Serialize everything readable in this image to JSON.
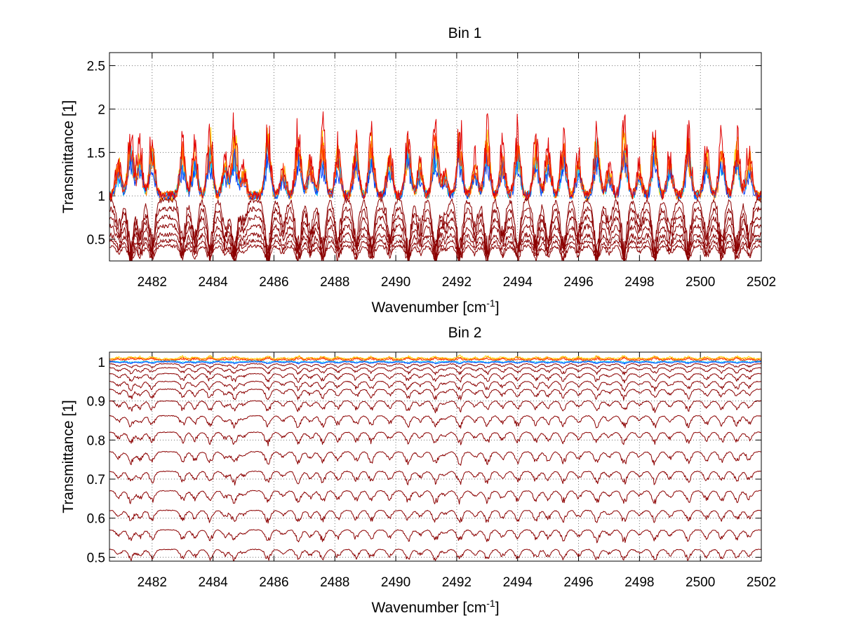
{
  "chart_data": [
    {
      "type": "line",
      "title": "Bin 1",
      "xlabel": "Wavenumber [cm",
      "xlabel_sup": "-1",
      "xlabel_suffix": "]",
      "ylabel": "Transmittance [1]",
      "xlim": [
        2480.6,
        2502
      ],
      "ylim": [
        0.25,
        2.65
      ],
      "xticks": [
        2482,
        2484,
        2486,
        2488,
        2490,
        2492,
        2494,
        2496,
        2498,
        2500,
        2502
      ],
      "yticks": [
        0.5,
        1,
        1.5,
        2,
        2.5
      ],
      "ytick_labels": [
        "0.5",
        "1",
        "1.5",
        "2",
        "2.5"
      ],
      "grid": true,
      "line_strength_centers": [
        2480.9,
        2481.3,
        2481.6,
        2482.0,
        2483.0,
        2483.4,
        2483.9,
        2484.4,
        2484.7,
        2485.0,
        2485.8,
        2486.3,
        2486.8,
        2487.2,
        2487.6,
        2488.1,
        2488.7,
        2489.2,
        2489.8,
        2490.4,
        2490.8,
        2491.3,
        2491.6,
        2492.1,
        2492.6,
        2493.0,
        2493.5,
        2494.0,
        2494.6,
        2495.0,
        2495.5,
        2496.0,
        2496.6,
        2497.0,
        2497.5,
        2498.0,
        2498.5,
        2499.0,
        2499.6,
        2500.2,
        2500.7,
        2501.2,
        2501.6
      ],
      "series": [
        {
          "baseline": 1.0,
          "peak": 0.6,
          "noise": 0.06,
          "color": "#ffd400"
        },
        {
          "baseline": 1.0,
          "peak": 0.55,
          "noise": 0.06,
          "color": "#ffa500"
        },
        {
          "baseline": 1.0,
          "peak": 0.5,
          "noise": 0.06,
          "color": "#ff7f00"
        },
        {
          "baseline": 1.0,
          "peak": 0.45,
          "noise": 0.05,
          "color": "#00c8ff"
        },
        {
          "baseline": 1.0,
          "peak": 0.4,
          "noise": 0.05,
          "color": "#0040ff"
        },
        {
          "baseline": 1.0,
          "peak": 0.55,
          "noise": 0.05,
          "color": "#ff3000"
        },
        {
          "baseline": 1.0,
          "peak": 0.75,
          "noise": 0.06,
          "color": "#e00000"
        },
        {
          "baseline": 0.95,
          "dip": 0.6,
          "noise": 0.03,
          "color": "#8b0000"
        },
        {
          "baseline": 0.85,
          "dip": 0.5,
          "noise": 0.03,
          "color": "#8b0000"
        },
        {
          "baseline": 0.75,
          "dip": 0.4,
          "noise": 0.03,
          "color": "#8b0000"
        },
        {
          "baseline": 0.65,
          "dip": 0.32,
          "noise": 0.03,
          "color": "#8b0000"
        },
        {
          "baseline": 0.55,
          "dip": 0.25,
          "noise": 0.03,
          "color": "#8b0000"
        },
        {
          "baseline": 0.48,
          "dip": 0.2,
          "noise": 0.02,
          "color": "#8b0000"
        },
        {
          "baseline": 0.42,
          "dip": 0.16,
          "noise": 0.02,
          "color": "#8b0000"
        }
      ]
    },
    {
      "type": "line",
      "title": "Bin 2",
      "xlabel": "Wavenumber [cm",
      "xlabel_sup": "-1",
      "xlabel_suffix": "]",
      "ylabel": "Transmittance [1]",
      "xlim": [
        2480.6,
        2502
      ],
      "ylim": [
        0.49,
        1.025
      ],
      "xticks": [
        2482,
        2484,
        2486,
        2488,
        2490,
        2492,
        2494,
        2496,
        2498,
        2500,
        2502
      ],
      "yticks": [
        0.5,
        0.6,
        0.7,
        0.8,
        0.9,
        1
      ],
      "ytick_labels": [
        "0.5",
        "0.6",
        "0.7",
        "0.8",
        "0.9",
        "1"
      ],
      "grid": true,
      "line_strength_centers": [
        2480.9,
        2481.3,
        2481.6,
        2482.0,
        2483.0,
        2483.4,
        2483.9,
        2484.4,
        2484.7,
        2485.0,
        2485.8,
        2486.3,
        2486.8,
        2487.2,
        2487.6,
        2488.1,
        2488.7,
        2489.2,
        2489.8,
        2490.4,
        2490.8,
        2491.3,
        2491.6,
        2492.1,
        2492.6,
        2493.0,
        2493.5,
        2494.0,
        2494.6,
        2495.0,
        2495.5,
        2496.0,
        2496.6,
        2497.0,
        2497.5,
        2498.0,
        2498.5,
        2499.0,
        2499.6,
        2500.2,
        2500.7,
        2501.2,
        2501.6
      ],
      "series": [
        {
          "baseline": 1.008,
          "peak": 0.006,
          "noise": 0.002,
          "color": "#ffd400"
        },
        {
          "baseline": 1.006,
          "peak": 0.006,
          "noise": 0.002,
          "color": "#ff7f00"
        },
        {
          "baseline": 1.004,
          "peak": 0.005,
          "noise": 0.002,
          "color": "#ff3000"
        },
        {
          "baseline": 1.002,
          "dip": 0.004,
          "noise": 0.001,
          "color": "#00c8ff"
        },
        {
          "baseline": 1.0,
          "dip": 0.004,
          "noise": 0.001,
          "color": "#0040ff"
        },
        {
          "baseline": 0.995,
          "dip": 0.01,
          "noise": 0.001,
          "color": "#8b0000"
        },
        {
          "baseline": 0.985,
          "dip": 0.014,
          "noise": 0.001,
          "color": "#8b0000"
        },
        {
          "baseline": 0.97,
          "dip": 0.018,
          "noise": 0.001,
          "color": "#8b0000"
        },
        {
          "baseline": 0.95,
          "dip": 0.02,
          "noise": 0.001,
          "color": "#8b0000"
        },
        {
          "baseline": 0.93,
          "dip": 0.022,
          "noise": 0.001,
          "color": "#8b0000"
        },
        {
          "baseline": 0.9,
          "dip": 0.024,
          "noise": 0.001,
          "color": "#8b0000"
        },
        {
          "baseline": 0.862,
          "dip": 0.026,
          "noise": 0.001,
          "color": "#8b0000"
        },
        {
          "baseline": 0.82,
          "dip": 0.027,
          "noise": 0.001,
          "color": "#8b0000"
        },
        {
          "baseline": 0.77,
          "dip": 0.028,
          "noise": 0.001,
          "color": "#8b0000"
        },
        {
          "baseline": 0.72,
          "dip": 0.028,
          "noise": 0.001,
          "color": "#8b0000"
        },
        {
          "baseline": 0.67,
          "dip": 0.028,
          "noise": 0.001,
          "color": "#8b0000"
        },
        {
          "baseline": 0.62,
          "dip": 0.027,
          "noise": 0.001,
          "color": "#8b0000"
        },
        {
          "baseline": 0.57,
          "dip": 0.026,
          "noise": 0.001,
          "color": "#8b0000"
        },
        {
          "baseline": 0.52,
          "dip": 0.024,
          "noise": 0.001,
          "color": "#8b0000"
        }
      ]
    }
  ]
}
